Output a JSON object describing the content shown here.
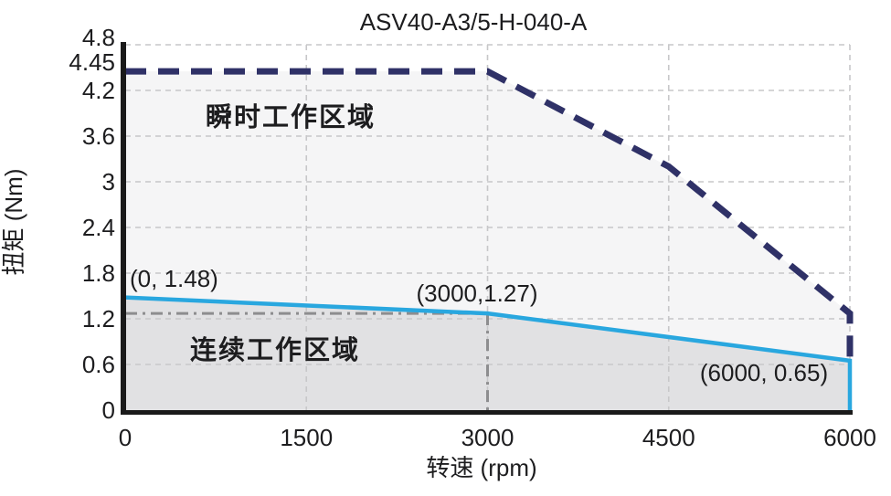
{
  "title": "ASV40-A3/5-H-040-A",
  "colors": {
    "peak_line": "#2f3167",
    "continuous_line": "#29a7df",
    "peak_region_fill": "#f5f5f6",
    "continuous_region_fill": "#e1e1e3",
    "grid": "#c7c7c9",
    "guide": "#8d8d8f",
    "axis": "#1a1a1a",
    "text": "#1d1d1f",
    "peak_label_color": "#2f3167",
    "continuous_label_color": "#2ba3d6"
  },
  "chart_data": {
    "type": "line",
    "title": "ASV40-A3/5-H-040-A",
    "xlabel": "转速 (rpm)",
    "ylabel": "扭矩 (Nm)",
    "xlim": [
      0,
      6000
    ],
    "ylim": [
      0,
      4.8
    ],
    "x_ticks": {
      "values": [
        0,
        1500,
        3000,
        4500,
        6000
      ],
      "labels": [
        "0",
        "1500",
        "3000",
        "4500",
        "6000"
      ]
    },
    "y_ticks": {
      "values": [
        0,
        0.6,
        1.2,
        1.8,
        2.4,
        3,
        3.6,
        4.2,
        4.45,
        4.8
      ],
      "labels": [
        "0",
        "0.6",
        "1.2",
        "1.8",
        "2.4",
        "3",
        "3.6",
        "4.2",
        "4.45",
        "4.8"
      ]
    },
    "grid_x": [
      1500,
      3000,
      4500,
      6000
    ],
    "grid_y": [
      0.6,
      1.2,
      1.8,
      2.4,
      3,
      3.6,
      4.2,
      4.8
    ],
    "grid_on": true,
    "legend_position": "none",
    "series": [
      {
        "name": "peak-torque-limit",
        "style": "dashed",
        "points": [
          [
            0,
            4.45
          ],
          [
            3000,
            4.45
          ],
          [
            4500,
            3.2
          ],
          [
            6000,
            1.27
          ],
          [
            6000,
            0.65
          ]
        ]
      },
      {
        "name": "continuous-torque-limit",
        "style": "solid",
        "points": [
          [
            0,
            1.48
          ],
          [
            3000,
            1.27
          ],
          [
            6000,
            0.65
          ],
          [
            6000,
            0
          ]
        ]
      }
    ],
    "rated_point_guides": {
      "horizontal_y": 1.27,
      "horizontal_x_range": [
        0,
        3000
      ],
      "vertical_x": 3000,
      "vertical_y_range": [
        0,
        1.27
      ]
    },
    "annotations": [
      {
        "text": "(0, 1.48)"
      },
      {
        "text": "(3000,1.27)"
      },
      {
        "text": "(6000, 0.65)"
      }
    ],
    "region_labels": {
      "peak": "瞬时工作区域",
      "continuous": "连续工作区域"
    }
  }
}
